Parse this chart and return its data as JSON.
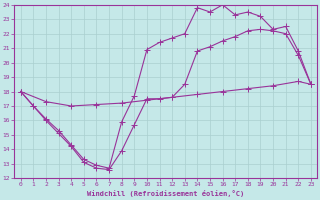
{
  "xlabel": "Windchill (Refroidissement éolien,°C)",
  "xlim": [
    -0.5,
    23.5
  ],
  "ylim": [
    12,
    24
  ],
  "xticks": [
    0,
    1,
    2,
    3,
    4,
    5,
    6,
    7,
    8,
    9,
    10,
    11,
    12,
    13,
    14,
    15,
    16,
    17,
    18,
    19,
    20,
    21,
    22,
    23
  ],
  "yticks": [
    12,
    13,
    14,
    15,
    16,
    17,
    18,
    19,
    20,
    21,
    22,
    23,
    24
  ],
  "bg_color": "#c5e8e8",
  "line_color": "#993399",
  "grid_color": "#aacfcf",
  "curve1_x": [
    0,
    1,
    2,
    3,
    4,
    5,
    6,
    7,
    8,
    9,
    10,
    11,
    12,
    13,
    14,
    15,
    16,
    17,
    18,
    19,
    20,
    21,
    22,
    23
  ],
  "curve1_y": [
    18.0,
    17.0,
    16.0,
    15.1,
    14.2,
    13.1,
    12.7,
    12.6,
    13.9,
    15.7,
    17.5,
    17.5,
    17.6,
    18.5,
    20.8,
    21.1,
    21.5,
    21.8,
    22.2,
    22.3,
    22.2,
    22.0,
    20.5,
    18.5
  ],
  "curve2_x": [
    0,
    1,
    2,
    3,
    4,
    5,
    6,
    7,
    8,
    9,
    10,
    11,
    12,
    13,
    14,
    15,
    16,
    17,
    18,
    19,
    20,
    21,
    22,
    23
  ],
  "curve2_y": [
    18.0,
    17.0,
    16.1,
    15.3,
    14.3,
    13.3,
    12.9,
    12.7,
    15.9,
    17.7,
    20.9,
    21.4,
    21.7,
    22.0,
    23.8,
    23.5,
    24.0,
    23.3,
    23.5,
    23.2,
    22.3,
    22.5,
    20.8,
    18.5
  ],
  "curve3_x": [
    0,
    2,
    4,
    6,
    8,
    10,
    12,
    14,
    16,
    18,
    20,
    22,
    23
  ],
  "curve3_y": [
    18.0,
    17.3,
    17.0,
    17.1,
    17.2,
    17.4,
    17.6,
    17.8,
    18.0,
    18.2,
    18.4,
    18.7,
    18.5
  ]
}
